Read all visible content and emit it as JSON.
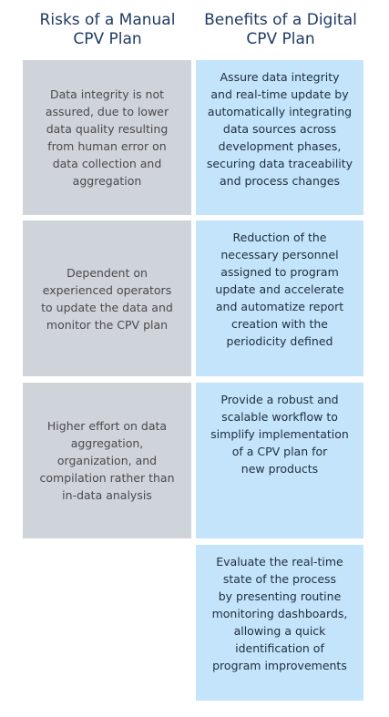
{
  "headers": {
    "left": "Risks of a Manual\nCPV Plan",
    "right": "Benefits of a Digital\nCPV Plan"
  },
  "risks": [
    "Data integrity is not\nassured, due to lower\ndata quality resulting\nfrom human error on\ndata collection and\naggregation",
    "Dependent on\nexperienced operators\nto update the data and\nmonitor the CPV plan",
    "Higher effort on data\naggregation,\norganization, and\ncompilation rather than\nin-data analysis"
  ],
  "benefits": [
    "Assure data integrity\nand real-time update by\nautomatically integrating\ndata sources across\ndevelopment phases,\nsecuring data traceability\nand process changes",
    "Reduction of the\nnecessary personnel\nassigned to program\nupdate and accelerate\nand automatize report\ncreation with the\nperiodicity defined",
    "Provide a robust and\nscalable workflow to\nsimplify implementation\nof a CPV plan for\nnew products",
    "Evaluate the real-time\nstate of the process\nby presenting routine\nmonitoring dashboards,\nallowing a quick\nidentification of\nprogram improvements"
  ],
  "colors": {
    "header_text": "#1f3b63",
    "risk_background": "#cfd3da",
    "benefit_background": "#c3e4fb"
  }
}
